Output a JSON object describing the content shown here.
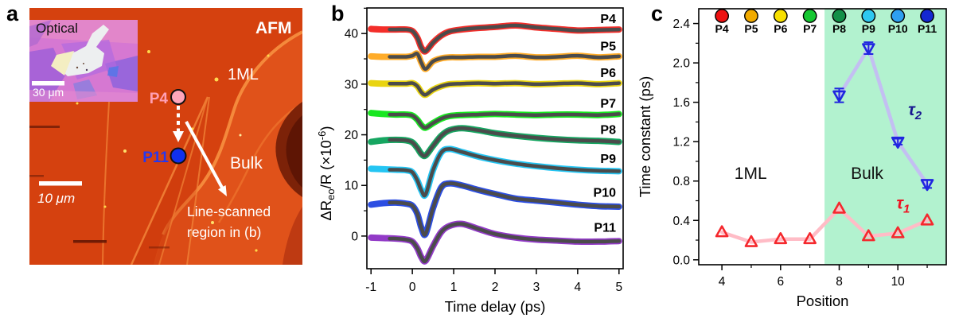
{
  "figure": {
    "panel_letters": {
      "a": "a",
      "b": "b",
      "c": "c"
    },
    "panel_a": {
      "inset_title": "Optical",
      "inset_scalebar_label": "30 μm",
      "afm_label": "AFM",
      "label_1ml": "1ML",
      "label_bulk": "Bulk",
      "point_top_label": "P4",
      "point_bottom_label": "P11",
      "scalebar_label": "10 μm",
      "annotation_line1": "Line-scanned",
      "annotation_line2": "region in (b)",
      "colors": {
        "afm_base": "#d5410f",
        "afm_terrace": "#e0521a",
        "afm_ridge_highlight": "#f79040",
        "afm_dark_patch": "#7c2208",
        "p4_dot": "#ffa6ba",
        "p11_dot": "#1030ee",
        "p4_text": "#ff9fb4",
        "p11_text": "#2438f0",
        "optical_bg": "#d678d2",
        "flake": "#edeff0"
      }
    }
  },
  "chart_data": [
    {
      "type": "line",
      "panel": "b",
      "xlabel": "Time delay (ps)",
      "ylabel": "ΔR_eo/R (×10^-6)",
      "ylabel_parts": {
        "pre": "ΔR",
        "sub": "eo",
        "mid": "/R (×10",
        "sup": "-6",
        "post": ")"
      },
      "xlim": [
        -1.1,
        5.1
      ],
      "ylim": [
        -6.45,
        45.05
      ],
      "x_ticks": [
        -1,
        0,
        1,
        2,
        3,
        4,
        5
      ],
      "y_ticks": [
        0,
        10,
        20,
        30,
        40
      ],
      "y_minor_ticks": [
        5,
        15,
        25,
        35,
        45
      ],
      "grid": false,
      "legend_position": "labels-right-inline",
      "fit_color": "#4b4b4b",
      "fit_start": -0.55,
      "x": [
        -1.0,
        -0.7,
        -0.4,
        -0.15,
        0.0,
        0.12,
        0.22,
        0.32,
        0.5,
        0.7,
        0.9,
        1.2,
        1.6,
        2.0,
        2.5,
        3.0,
        3.5,
        4.0,
        4.5,
        5.0
      ],
      "series": [
        {
          "name": "P4",
          "color": "#f2231f",
          "values": [
            40.9,
            40.8,
            40.8,
            40.8,
            40.5,
            39.2,
            37.2,
            36.5,
            38.2,
            39.6,
            40.4,
            40.8,
            41.1,
            41.3,
            41.6,
            41.2,
            40.9,
            40.6,
            40.7,
            40.8
          ]
        },
        {
          "name": "P5",
          "color": "#ffa81e",
          "values": [
            35.5,
            35.4,
            35.4,
            35.4,
            35.6,
            36.0,
            34.2,
            33.0,
            34.5,
            35.1,
            35.3,
            35.3,
            35.4,
            35.4,
            35.6,
            35.3,
            35.4,
            35.6,
            35.3,
            35.5
          ]
        },
        {
          "name": "P6",
          "color": "#e8d204",
          "values": [
            30.2,
            30.1,
            30.1,
            30.1,
            30.2,
            29.6,
            28.4,
            27.9,
            28.9,
            29.6,
            30.0,
            30.1,
            30.2,
            30.1,
            30.2,
            30.0,
            30.1,
            30.2,
            30.0,
            30.2
          ]
        },
        {
          "name": "P7",
          "color": "#0ce615",
          "values": [
            24.3,
            24.1,
            24.0,
            24.0,
            23.8,
            23.0,
            21.9,
            21.4,
            22.3,
            23.2,
            23.7,
            23.9,
            24.0,
            24.1,
            24.0,
            23.9,
            24.0,
            24.0,
            23.9,
            24.1
          ]
        },
        {
          "name": "P8",
          "color": "#0aa159",
          "values": [
            18.6,
            18.9,
            19.0,
            18.9,
            18.5,
            17.4,
            16.2,
            15.9,
            17.8,
            19.8,
            20.9,
            21.3,
            20.9,
            20.3,
            19.8,
            19.4,
            19.1,
            18.9,
            18.8,
            18.6
          ]
        },
        {
          "name": "P9",
          "color": "#18c2f2",
          "values": [
            13.3,
            13.2,
            13.1,
            13.0,
            12.6,
            11.0,
            9.0,
            8.2,
            13.0,
            16.5,
            17.2,
            16.6,
            15.7,
            15.0,
            14.3,
            13.8,
            13.4,
            13.1,
            12.9,
            12.8
          ]
        },
        {
          "name": "P10",
          "color": "#2144e0",
          "values": [
            6.2,
            6.5,
            6.6,
            6.4,
            6.0,
            4.4,
            1.6,
            0.4,
            5.5,
            9.6,
            10.4,
            10.0,
            9.1,
            8.3,
            7.4,
            7.0,
            6.6,
            6.2,
            5.9,
            5.8
          ]
        },
        {
          "name": "P11",
          "color": "#8c2fc4",
          "values": [
            -0.3,
            -0.4,
            -0.5,
            -0.7,
            -1.1,
            -2.4,
            -4.2,
            -4.9,
            -2.0,
            0.8,
            2.0,
            2.4,
            1.4,
            0.4,
            -0.3,
            -0.7,
            -0.9,
            -1.1,
            -1.1,
            -1.0
          ]
        }
      ]
    },
    {
      "type": "scatter",
      "panel": "c",
      "xlabel": "Position",
      "ylabel": "Time constant (ps)",
      "xlim": [
        3.21,
        11.65
      ],
      "ylim": [
        -0.05,
        2.55
      ],
      "x_ticks": [
        4,
        6,
        8,
        10
      ],
      "x_minor_ticks": [
        5,
        7,
        9,
        11
      ],
      "y_ticks": [
        0.0,
        0.4,
        0.8,
        1.2,
        1.6,
        2.0,
        2.4
      ],
      "y_minor_ticks": [
        0.2,
        0.6,
        1.0,
        1.4,
        1.8,
        2.2
      ],
      "grid": false,
      "shaded_region": {
        "from": 7.5,
        "to": 11.65,
        "color": "#b2f2cf",
        "label": "Bulk",
        "label_x": 8.95,
        "label_y": 0.88
      },
      "unshaded_label": "1ML",
      "unshaded_label_x": 4.98,
      "unshaded_label_y": 0.88,
      "legend": [
        {
          "label": "P4",
          "color": "#ee1111",
          "x": 4
        },
        {
          "label": "P5",
          "color": "#f2ab00",
          "x": 5
        },
        {
          "label": "P6",
          "color": "#f7e000",
          "x": 6
        },
        {
          "label": "P7",
          "color": "#16c832",
          "x": 7
        },
        {
          "label": "P8",
          "color": "#128f48",
          "x": 8
        },
        {
          "label": "P9",
          "color": "#2ec8f0",
          "x": 9
        },
        {
          "label": "P10",
          "color": "#2e9ff0",
          "x": 10
        },
        {
          "label": "P11",
          "color": "#1428d2",
          "x": 11
        }
      ],
      "series": [
        {
          "name": "tau1",
          "symbol": "τ",
          "sub": "1",
          "marker": "triangle-up",
          "color": "#f5282d",
          "line_color": "#ffbcc6",
          "x": [
            4,
            5,
            6,
            7,
            8,
            9,
            10,
            11
          ],
          "values": [
            0.28,
            0.18,
            0.21,
            0.21,
            0.52,
            0.24,
            0.27,
            0.4
          ],
          "label_x": 9.95,
          "label_y": 0.52
        },
        {
          "name": "tau2",
          "symbol": "τ",
          "sub": "2",
          "marker": "triangle-down",
          "color": "#2026e0",
          "line_color": "#c3bff2",
          "x": [
            8,
            9,
            10,
            11
          ],
          "values": [
            1.67,
            2.15,
            1.2,
            0.77
          ],
          "errors": [
            0.07,
            0.06,
            0.03,
            0.04
          ],
          "label_x": 10.35,
          "label_y": 1.47
        }
      ]
    }
  ]
}
